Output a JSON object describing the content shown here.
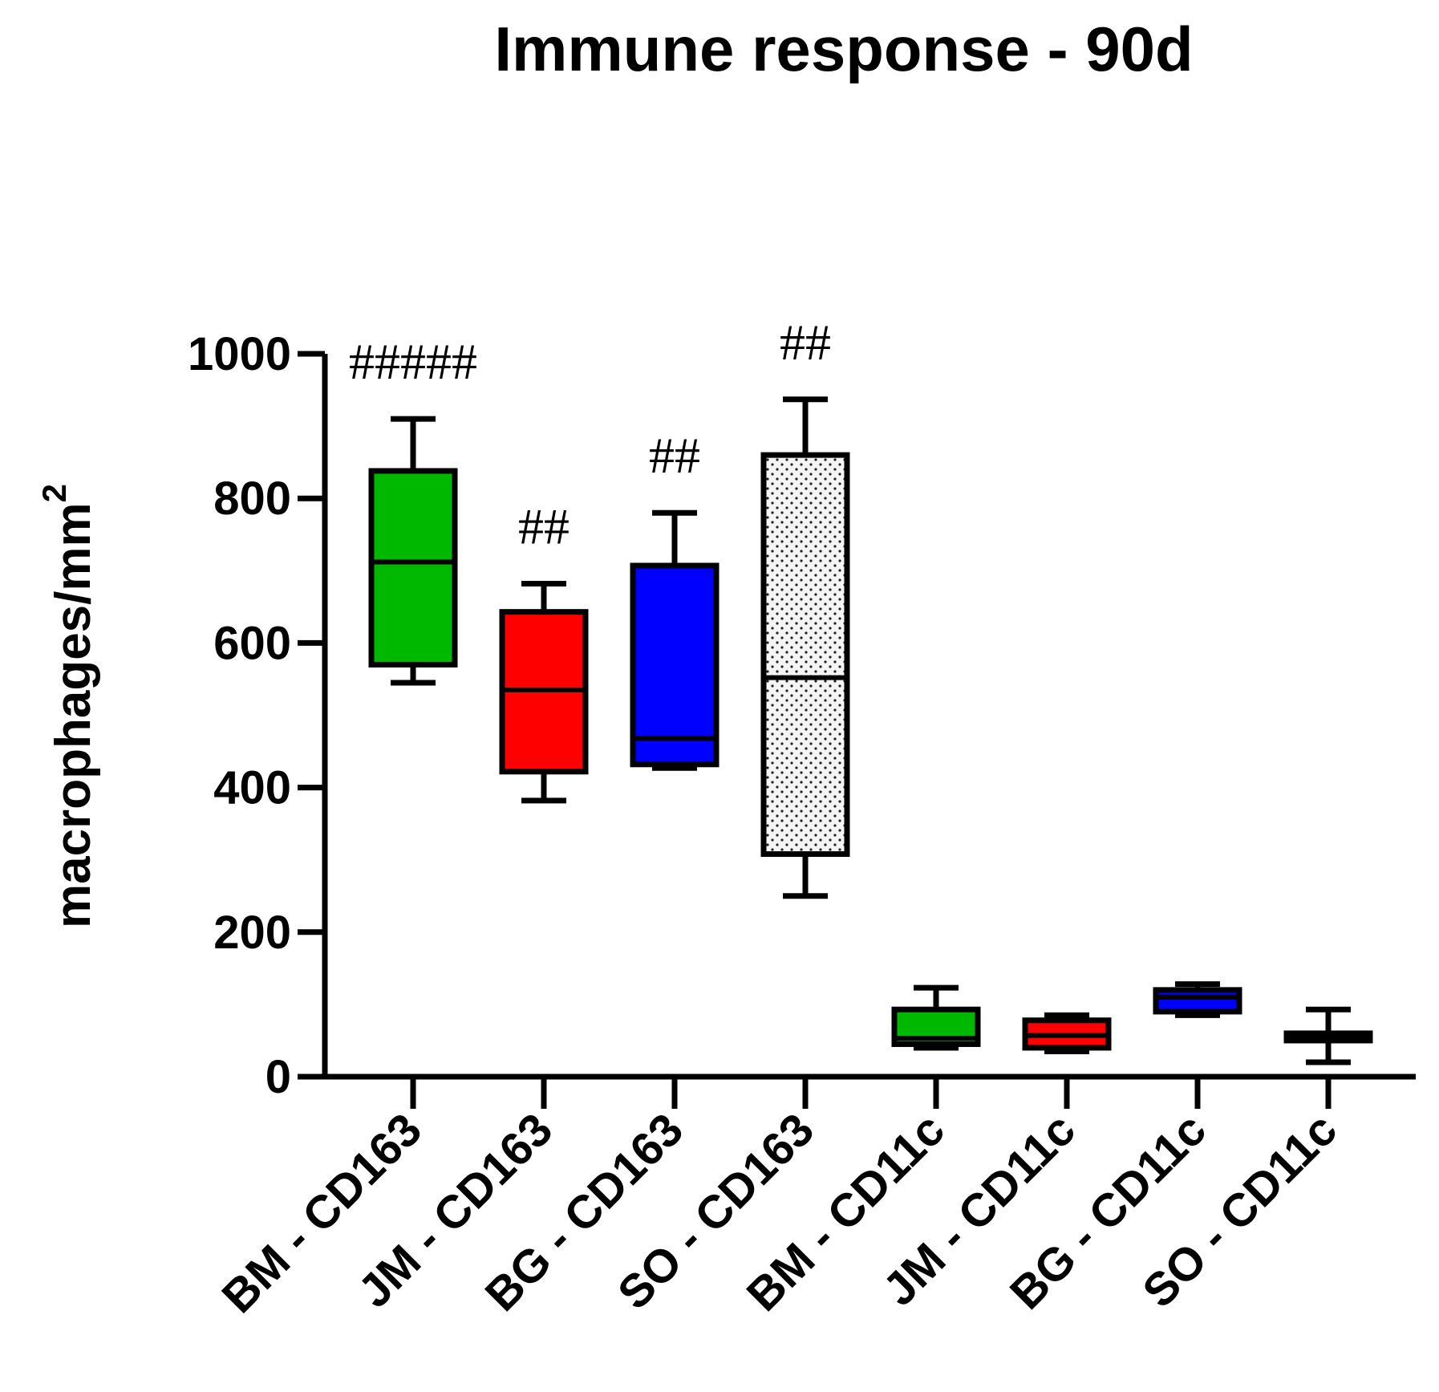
{
  "chart_data": {
    "type": "box",
    "title": "Immune response - 90d",
    "ylabel": "macrophages/mm",
    "ylabel_superscript": "2",
    "xlabel": "",
    "ylim": [
      0,
      1000
    ],
    "yticks": [
      0,
      200,
      400,
      600,
      800,
      1000
    ],
    "legend": "none",
    "grid": false,
    "categories": [
      "BM - CD163",
      "JM - CD163",
      "BG - CD163",
      "SO - CD163",
      "BM - CD11c",
      "JM - CD11c",
      "BG - CD11c",
      "SO - CD11c"
    ],
    "boxes": [
      {
        "category": "BM - CD163",
        "min": 545,
        "q1": 570,
        "median": 712,
        "q3": 838,
        "max": 910,
        "fill": "#00b800",
        "median_color": "#000000",
        "pattern": "none",
        "annotation": "#####"
      },
      {
        "category": "JM - CD163",
        "min": 382,
        "q1": 422,
        "median": 535,
        "q3": 643,
        "max": 682,
        "fill": "#ff0000",
        "median_color": "#000000",
        "pattern": "none",
        "annotation": "##"
      },
      {
        "category": "BG - CD163",
        "min": 427,
        "q1": 432,
        "median": 468,
        "q3": 707,
        "max": 780,
        "fill": "#0000ff",
        "median_color": "#000000",
        "pattern": "none",
        "annotation": "##"
      },
      {
        "category": "SO - CD163",
        "min": 250,
        "q1": 308,
        "median": 552,
        "q3": 860,
        "max": 937,
        "fill": "#ffffff",
        "median_color": "#000000",
        "pattern": "dots",
        "annotation": "##"
      },
      {
        "category": "BM - CD11c",
        "min": 40,
        "q1": 45,
        "median": 53,
        "q3": 93,
        "max": 123,
        "fill": "#00b800",
        "median_color": "#000000",
        "pattern": "none",
        "annotation": ""
      },
      {
        "category": "JM - CD11c",
        "min": 35,
        "q1": 40,
        "median": 57,
        "q3": 78,
        "max": 85,
        "fill": "#ff0000",
        "median_color": "#000000",
        "pattern": "none",
        "annotation": ""
      },
      {
        "category": "BG - CD11c",
        "min": 85,
        "q1": 90,
        "median": 110,
        "q3": 120,
        "max": 128,
        "fill": "#0000ff",
        "median_color": "#000000",
        "pattern": "none",
        "annotation": ""
      },
      {
        "category": "SO - CD11c",
        "min": 20,
        "q1": 50,
        "median": 55,
        "q3": 60,
        "max": 93,
        "fill": "#ffffff",
        "median_color": "#000000",
        "pattern": "dots",
        "annotation": ""
      }
    ]
  }
}
